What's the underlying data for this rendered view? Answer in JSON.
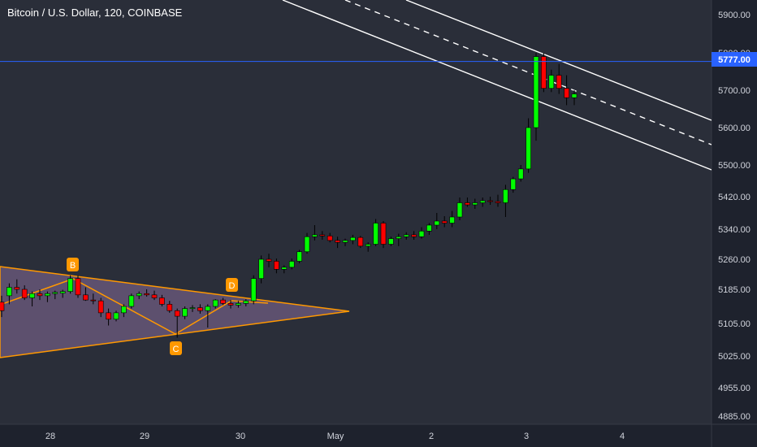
{
  "chart_data": {
    "type": "candlestick",
    "title": "Bitcoin / U.S. Dollar, 120, COINBASE",
    "y_ticks": [
      5900,
      5800,
      5700,
      5600,
      5500,
      5420,
      5340,
      5260,
      5185,
      5105,
      5025,
      4955,
      4885
    ],
    "x_ticks": [
      "28",
      "29",
      "30",
      "May",
      "2",
      "3",
      "4"
    ],
    "price_line": {
      "value": 5777,
      "label": "5777.00",
      "color": "#2962ff"
    },
    "pattern_points": [
      "B",
      "C",
      "D"
    ],
    "colors": {
      "up": "#00ff00",
      "down": "#ff0000",
      "pattern": "#ff9800",
      "pattern_fill": "#9c7bb0",
      "channel": "#ffffff",
      "background": "#2a2e39",
      "axis": "#1e222d"
    },
    "candles": [
      [
        5155,
        5170,
        5120,
        5135
      ],
      [
        5170,
        5200,
        5150,
        5190
      ],
      [
        5190,
        5210,
        5175,
        5185
      ],
      [
        5185,
        5195,
        5160,
        5165
      ],
      [
        5165,
        5180,
        5145,
        5175
      ],
      [
        5175,
        5185,
        5160,
        5170
      ],
      [
        5170,
        5180,
        5155,
        5175
      ],
      [
        5175,
        5182,
        5162,
        5178
      ],
      [
        5176,
        5184,
        5165,
        5180
      ],
      [
        5180,
        5220,
        5175,
        5212
      ],
      [
        5212,
        5220,
        5165,
        5172
      ],
      [
        5172,
        5190,
        5158,
        5160
      ],
      [
        5160,
        5175,
        5150,
        5158
      ],
      [
        5158,
        5165,
        5120,
        5130
      ],
      [
        5130,
        5140,
        5100,
        5115
      ],
      [
        5115,
        5135,
        5110,
        5130
      ],
      [
        5130,
        5150,
        5120,
        5145
      ],
      [
        5145,
        5175,
        5140,
        5170
      ],
      [
        5170,
        5180,
        5162,
        5175
      ],
      [
        5175,
        5185,
        5168,
        5172
      ],
      [
        5172,
        5182,
        5160,
        5165
      ],
      [
        5165,
        5172,
        5145,
        5150
      ],
      [
        5150,
        5158,
        5130,
        5135
      ],
      [
        5135,
        5140,
        5070,
        5122
      ],
      [
        5122,
        5145,
        5115,
        5140
      ],
      [
        5140,
        5148,
        5132,
        5142
      ],
      [
        5142,
        5150,
        5128,
        5135
      ],
      [
        5135,
        5150,
        5095,
        5145
      ],
      [
        5145,
        5162,
        5140,
        5160
      ],
      [
        5160,
        5165,
        5148,
        5152
      ],
      [
        5152,
        5160,
        5140,
        5148
      ],
      [
        5148,
        5158,
        5142,
        5152
      ],
      [
        5152,
        5162,
        5145,
        5158
      ],
      [
        5158,
        5220,
        5150,
        5212
      ],
      [
        5212,
        5270,
        5200,
        5260
      ],
      [
        5260,
        5275,
        5240,
        5255
      ],
      [
        5255,
        5262,
        5225,
        5235
      ],
      [
        5235,
        5245,
        5225,
        5240
      ],
      [
        5240,
        5262,
        5235,
        5255
      ],
      [
        5255,
        5285,
        5250,
        5280
      ],
      [
        5280,
        5330,
        5275,
        5320
      ],
      [
        5320,
        5350,
        5310,
        5325
      ],
      [
        5325,
        5335,
        5312,
        5322
      ],
      [
        5322,
        5330,
        5305,
        5310
      ],
      [
        5310,
        5320,
        5290,
        5305
      ],
      [
        5305,
        5315,
        5295,
        5310
      ],
      [
        5310,
        5325,
        5300,
        5318
      ],
      [
        5318,
        5322,
        5290,
        5295
      ],
      [
        5295,
        5305,
        5280,
        5300
      ],
      [
        5300,
        5365,
        5295,
        5355
      ],
      [
        5355,
        5360,
        5290,
        5300
      ],
      [
        5300,
        5320,
        5295,
        5315
      ],
      [
        5315,
        5328,
        5295,
        5320
      ],
      [
        5320,
        5332,
        5312,
        5325
      ],
      [
        5325,
        5335,
        5312,
        5320
      ],
      [
        5320,
        5345,
        5315,
        5335
      ],
      [
        5335,
        5355,
        5325,
        5350
      ],
      [
        5350,
        5380,
        5340,
        5360
      ],
      [
        5360,
        5372,
        5345,
        5355
      ],
      [
        5355,
        5385,
        5345,
        5370
      ],
      [
        5370,
        5418,
        5362,
        5405
      ],
      [
        5405,
        5418,
        5395,
        5400
      ],
      [
        5400,
        5415,
        5390,
        5405
      ],
      [
        5405,
        5418,
        5395,
        5410
      ],
      [
        5410,
        5420,
        5400,
        5408
      ],
      [
        5408,
        5425,
        5395,
        5405
      ],
      [
        5405,
        5450,
        5370,
        5438
      ],
      [
        5438,
        5470,
        5430,
        5465
      ],
      [
        5465,
        5500,
        5458,
        5490
      ],
      [
        5490,
        5625,
        5480,
        5600
      ],
      [
        5600,
        5800,
        5565,
        5790
      ],
      [
        5790,
        5800,
        5695,
        5705
      ],
      [
        5705,
        5755,
        5695,
        5740
      ],
      [
        5740,
        5770,
        5690,
        5705
      ],
      [
        5705,
        5740,
        5660,
        5680
      ],
      [
        5680,
        5700,
        5660,
        5690
      ]
    ]
  }
}
